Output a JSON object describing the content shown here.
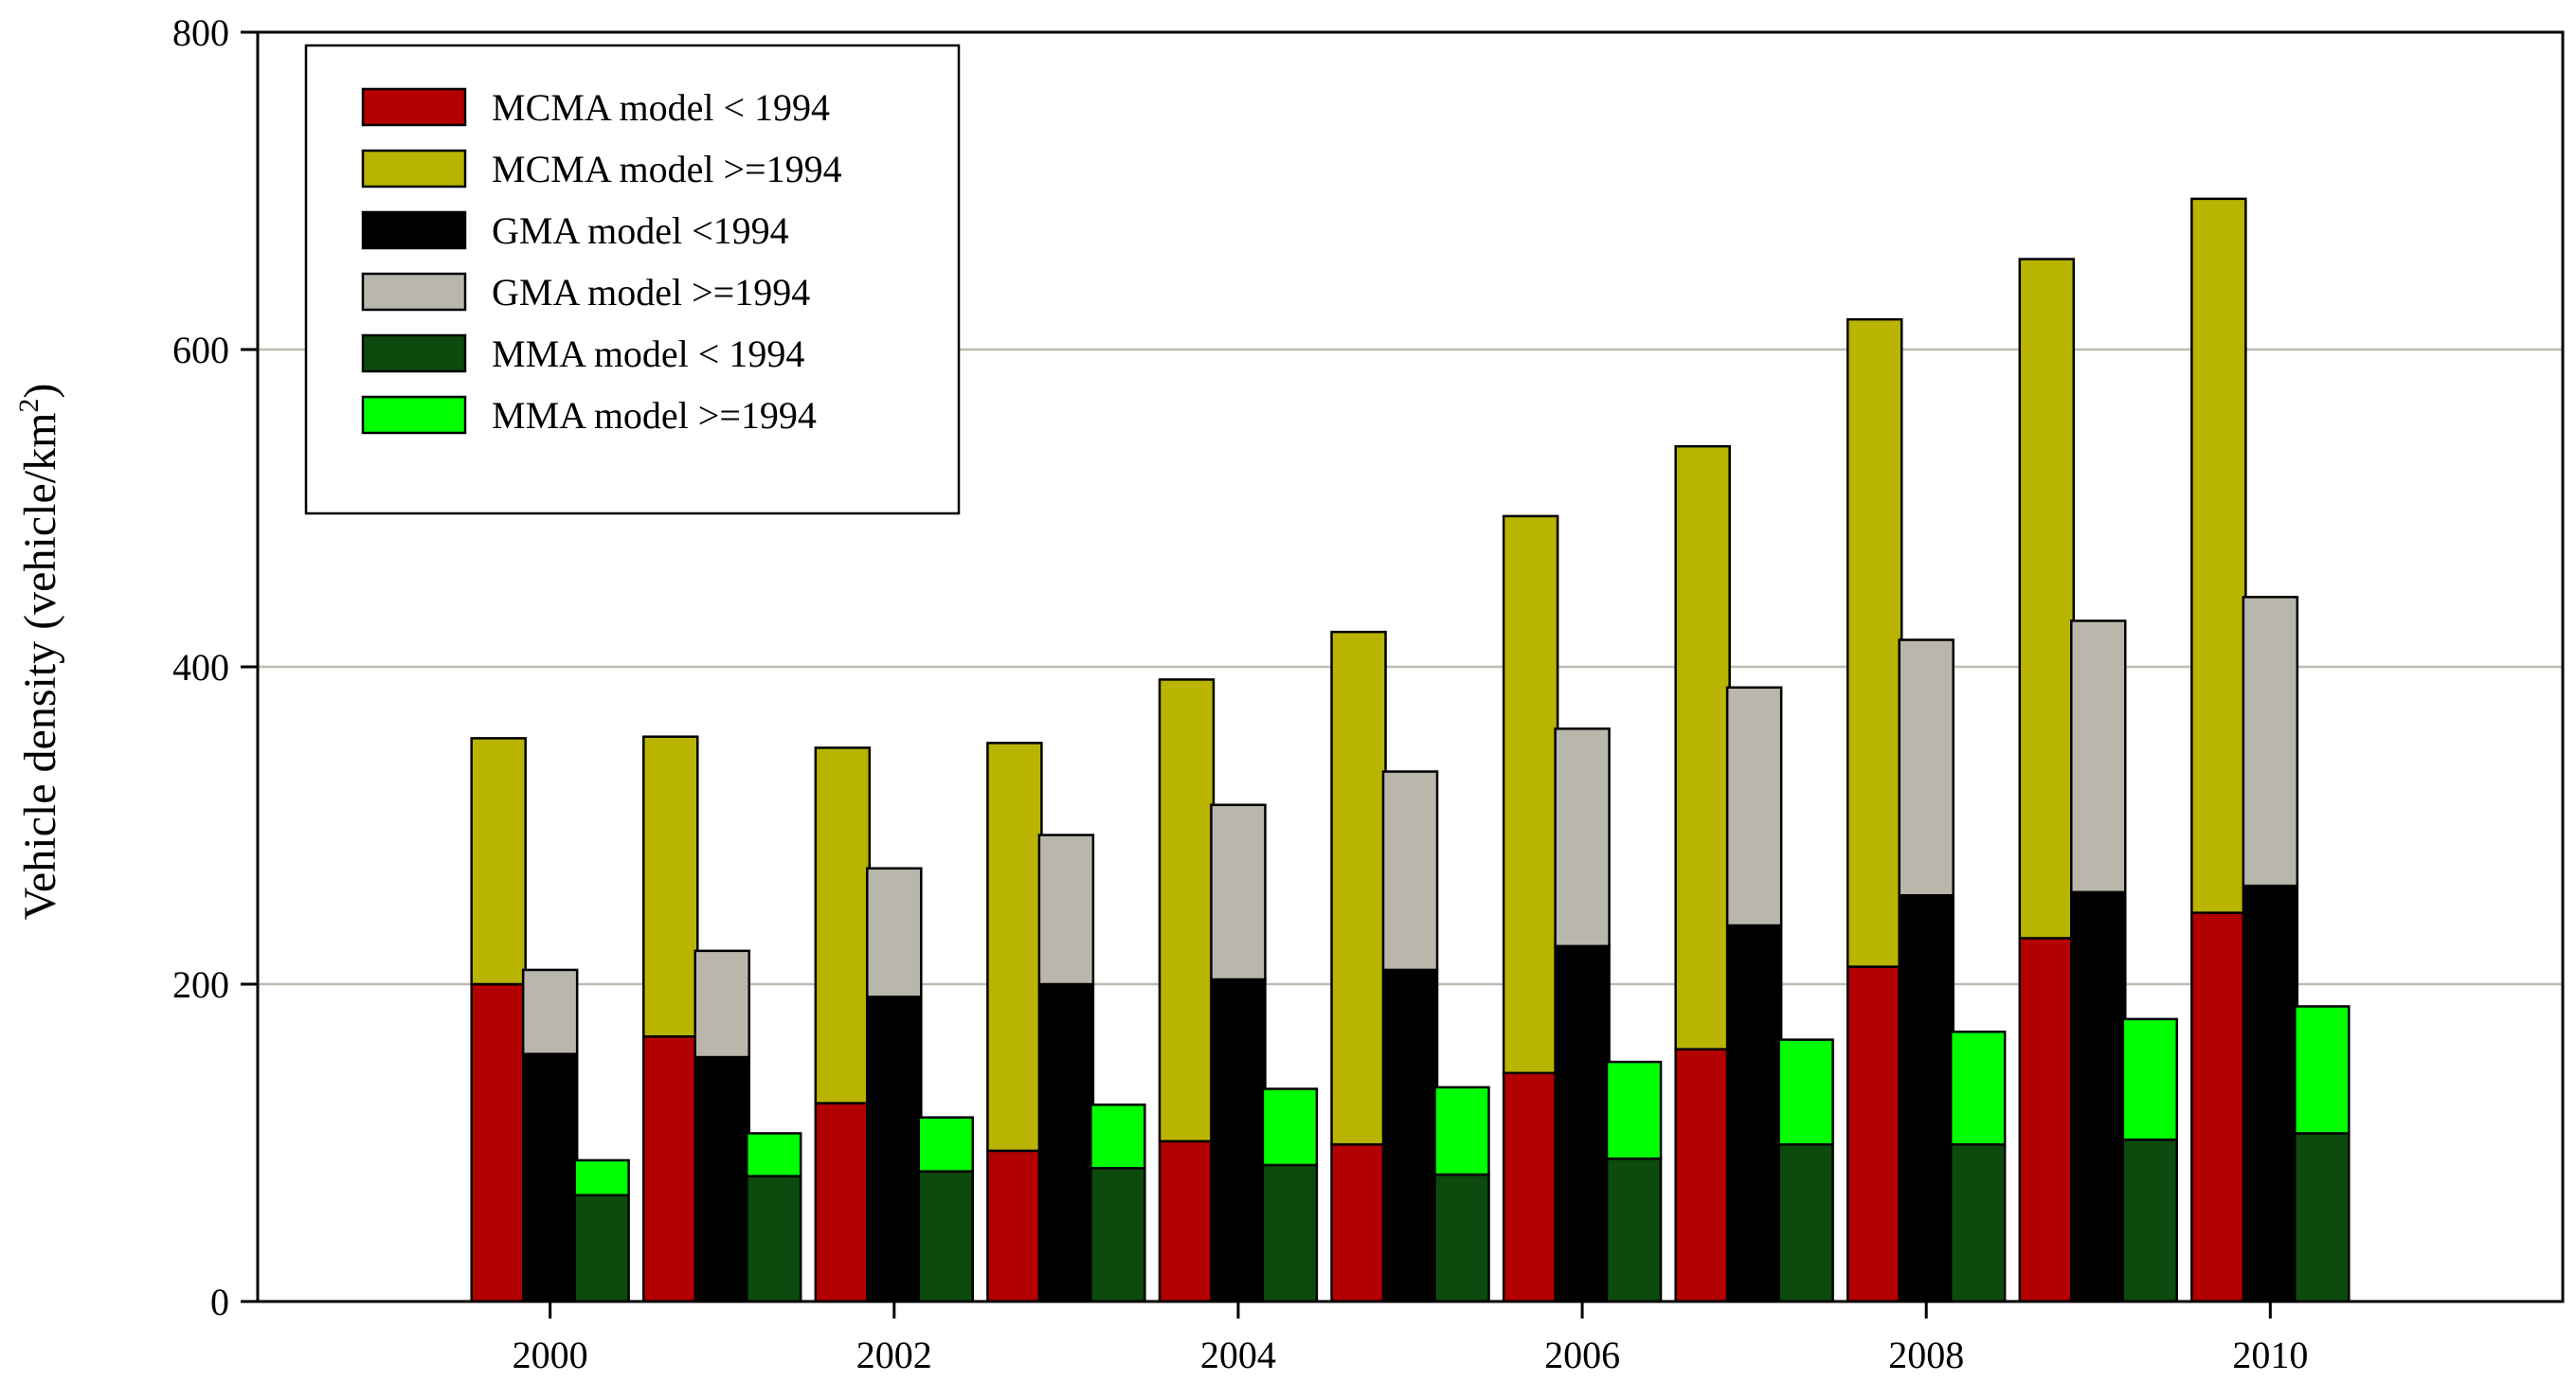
{
  "chart_data": {
    "type": "bar",
    "stacked_groups": true,
    "ylabel": "Vehicle density (vehicle/km",
    "ylabel_sup": "2",
    "ylabel_close": ")",
    "xlabel": "",
    "ylim": [
      0,
      800
    ],
    "xlim": [
      1998.3,
      2011.7
    ],
    "yticks": [
      0,
      200,
      400,
      600,
      800
    ],
    "xticks": [
      2000,
      2002,
      2004,
      2006,
      2008,
      2010
    ],
    "grid_y": [
      200,
      400,
      600
    ],
    "legend_position": "top-left",
    "x": [
      2000,
      2001,
      2002,
      2003,
      2004,
      2005,
      2006,
      2007,
      2008,
      2009,
      2010
    ],
    "groups": [
      {
        "name": "MCMA",
        "offset": -0.3,
        "series": [
          {
            "name": "MCMA model < 1994",
            "color": "#b30000",
            "values": [
              200,
              167,
              125,
              95,
              101,
              99,
              144,
              159,
              211,
              229,
              245
            ]
          },
          {
            "name": "MCMA model >=1994",
            "color": "#b8b400",
            "values": [
              155,
              189,
              224,
              257,
              291,
              323,
              351,
              380,
              408,
              428,
              450
            ]
          }
        ]
      },
      {
        "name": "GMA",
        "offset": 0.0,
        "series": [
          {
            "name": "GMA model <1994",
            "color": "#000000",
            "values": [
              156,
              154,
              192,
              200,
              203,
              209,
              224,
              237,
              256,
              258,
              262
            ]
          },
          {
            "name": "GMA model >=1994",
            "color": "#b9b6ab",
            "values": [
              53,
              67,
              81,
              94,
              110,
              125,
              137,
              150,
              161,
              171,
              182
            ]
          }
        ]
      },
      {
        "name": "MMA",
        "offset": 0.3,
        "series": [
          {
            "name": "MMA model < 1994",
            "color": "#0d4a0d",
            "values": [
              67,
              79,
              82,
              84,
              86,
              80,
              90,
              99,
              99,
              102,
              106
            ]
          },
          {
            "name": "MMA model >=1994",
            "color": "#00ff00",
            "values": [
              22,
              27,
              34,
              40,
              48,
              55,
              61,
              66,
              71,
              76,
              80
            ]
          }
        ]
      }
    ],
    "legend": [
      {
        "label": "MCMA model < 1994",
        "color": "#b30000"
      },
      {
        "label": "MCMA model >=1994",
        "color": "#b8b400"
      },
      {
        "label": "GMA model <1994",
        "color": "#000000"
      },
      {
        "label": "GMA model >=1994",
        "color": "#b9b6ab"
      },
      {
        "label": "MMA model < 1994",
        "color": "#0d4a0d"
      },
      {
        "label": "MMA model >=1994",
        "color": "#00ff00"
      }
    ]
  }
}
